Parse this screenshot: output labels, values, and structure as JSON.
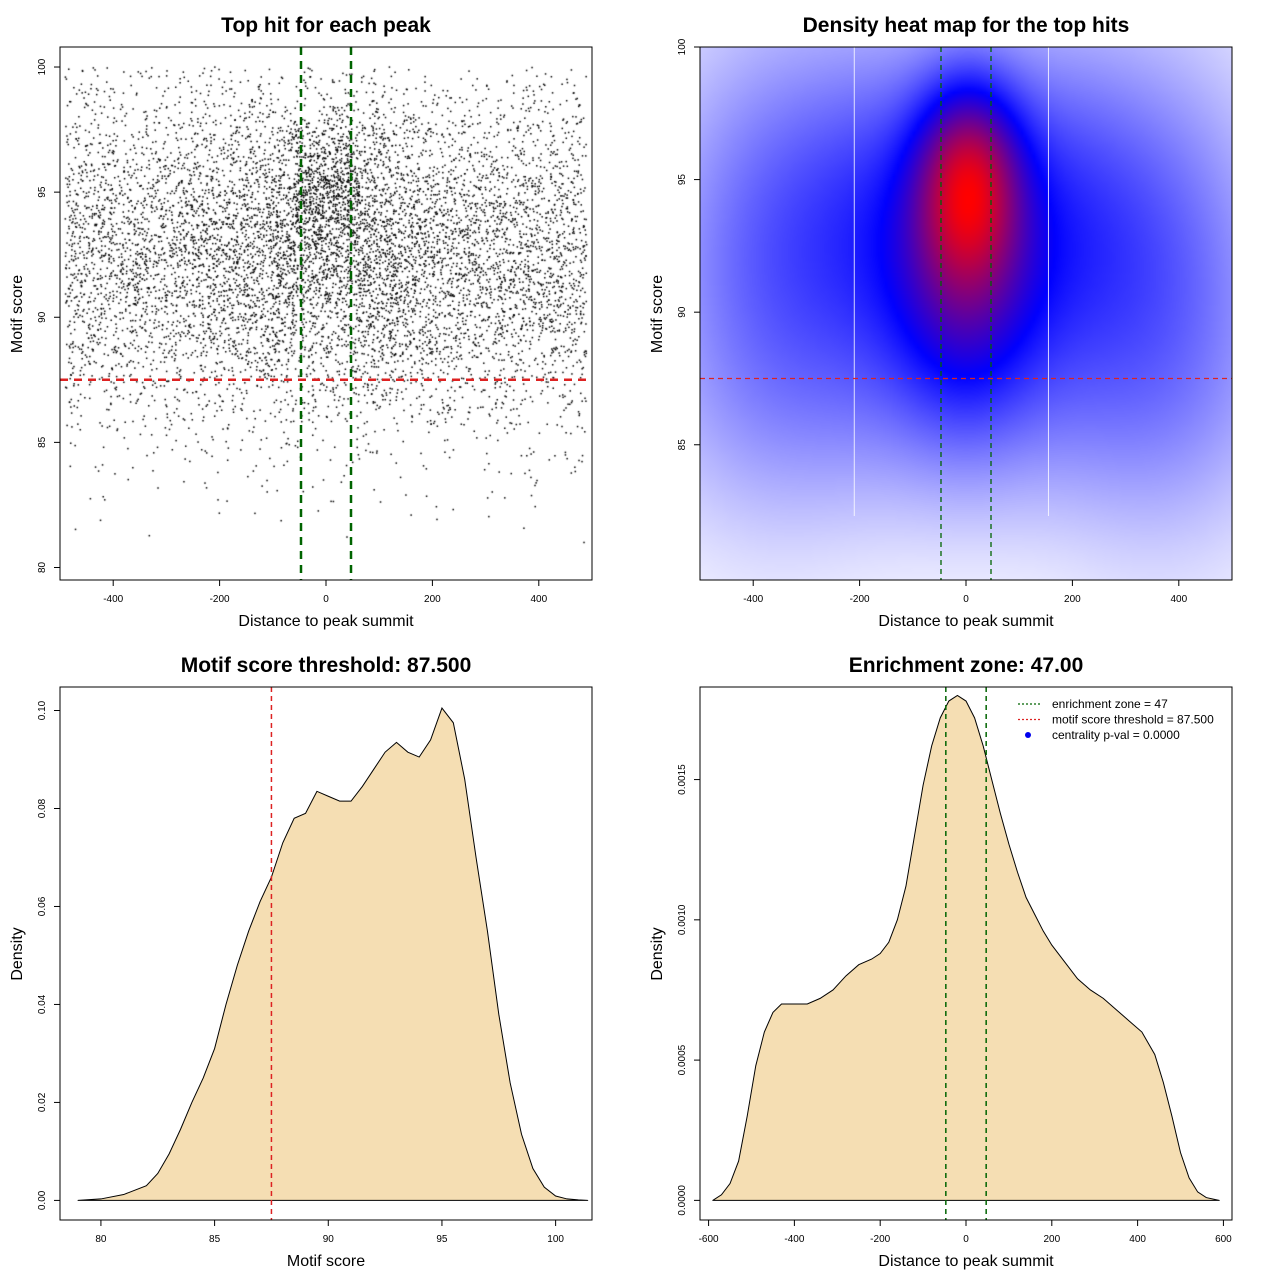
{
  "chart_data": [
    {
      "type": "scatter",
      "title": "Top hit for each peak",
      "xlabel": "Distance to peak summit",
      "ylabel": "Motif score",
      "xlim": [
        -500,
        500
      ],
      "ylim": [
        79.5,
        100.8
      ],
      "xticks": [
        "-400",
        "-200",
        "0",
        "200",
        "400"
      ],
      "yticks": [
        "80",
        "85",
        "90",
        "95",
        "100"
      ],
      "n_points_approx": 9000,
      "points_note": "dense cloud of top hits, x uniform in [-490, 490], scores mostly 82-100, denser near x=0 and scores 90-96",
      "sample_points": [
        [
          -482,
          86.6
        ],
        [
          -470,
          97.4
        ],
        [
          -450,
          93.2
        ],
        [
          -441,
          99.3
        ],
        [
          -420,
          84.1
        ],
        [
          -380,
          99.8
        ],
        [
          -351,
          91.7
        ],
        [
          -300,
          88.4
        ],
        [
          -260,
          95.9
        ],
        [
          -201,
          99.9
        ],
        [
          -150,
          93.1
        ],
        [
          -101,
          87.9
        ],
        [
          -60,
          96.4
        ],
        [
          -30,
          94.8
        ],
        [
          -5,
          92.3
        ],
        [
          10,
          95.2
        ],
        [
          25,
          90.7
        ],
        [
          48,
          97.1
        ],
        [
          90,
          89.3
        ],
        [
          150,
          93.6
        ],
        [
          210,
          86.2
        ],
        [
          290,
          95.1
        ],
        [
          340,
          99.4
        ],
        [
          401,
          91.8
        ],
        [
          450,
          84.6
        ],
        [
          480,
          97.9
        ],
        [
          485,
          81.0
        ]
      ],
      "vlines": [
        {
          "x": -47,
          "color": "#006400",
          "style": "dashed"
        },
        {
          "x": 47,
          "color": "#006400",
          "style": "dashed"
        }
      ],
      "hlines": [
        {
          "y": 87.5,
          "color": "#dd2222",
          "style": "dashed"
        }
      ]
    },
    {
      "type": "heatmap",
      "title": "Density heat map for the top hits",
      "xlabel": "Distance to peak summit",
      "ylabel": "Motif score",
      "xlim": [
        -500,
        500
      ],
      "ylim": [
        79.9,
        100
      ],
      "xticks": [
        "-400",
        "-200",
        "0",
        "200",
        "400"
      ],
      "yticks": [
        "85",
        "90",
        "95",
        "100"
      ],
      "color_scale": [
        "#ffffff",
        "#0000ff",
        "#ff0000"
      ],
      "density_peak": {
        "x": 5,
        "y": 95
      },
      "blobs": [
        {
          "x": 5,
          "y": 95,
          "sx": 65,
          "sy": 2.4,
          "w": 1.0
        },
        {
          "x": 0,
          "y": 91,
          "sx": 90,
          "sy": 3.5,
          "w": 0.55
        },
        {
          "x": -140,
          "y": 93,
          "sx": 140,
          "sy": 4.5,
          "w": 0.45
        },
        {
          "x": 150,
          "y": 93,
          "sx": 140,
          "sy": 4.5,
          "w": 0.45
        },
        {
          "x": -380,
          "y": 92,
          "sx": 140,
          "sy": 5.5,
          "w": 0.3
        },
        {
          "x": 380,
          "y": 91,
          "sx": 140,
          "sy": 5.5,
          "w": 0.3
        },
        {
          "x": 0,
          "y": 86,
          "sx": 350,
          "sy": 3,
          "w": 0.1
        }
      ],
      "white_vlines": [
        -210,
        155
      ],
      "vlines": [
        {
          "x": -47,
          "color": "#006400",
          "style": "dashed"
        },
        {
          "x": 47,
          "color": "#006400",
          "style": "dashed"
        }
      ],
      "hlines": [
        {
          "y": 87.5,
          "color": "#dd2222",
          "style": "dashed"
        }
      ]
    },
    {
      "type": "area",
      "title": "Motif score threshold: 87.500",
      "xlabel": "Motif score",
      "ylabel": "Density",
      "xlim": [
        78.2,
        101.6
      ],
      "ylim": [
        -0.004,
        0.1048
      ],
      "xticks": [
        "80",
        "85",
        "90",
        "95",
        "100"
      ],
      "yticks": [
        "0.00",
        "0.02",
        "0.04",
        "0.06",
        "0.08",
        "0.10"
      ],
      "fill": "#f5deb3",
      "x": [
        79,
        80,
        81,
        82,
        82.5,
        83,
        83.5,
        84,
        84.5,
        85,
        85.5,
        86,
        86.5,
        87,
        87.5,
        88,
        88.5,
        89,
        89.5,
        90,
        90.5,
        91,
        91.5,
        92,
        92.5,
        93,
        93.5,
        94,
        94.5,
        95,
        95.5,
        96,
        96.5,
        97,
        97.5,
        98,
        98.5,
        99,
        99.5,
        100,
        100.5,
        101,
        101.4
      ],
      "y": [
        0.0,
        0.0003,
        0.0012,
        0.003,
        0.0055,
        0.0095,
        0.0145,
        0.02,
        0.025,
        0.031,
        0.04,
        0.048,
        0.055,
        0.061,
        0.066,
        0.073,
        0.078,
        0.079,
        0.0835,
        0.0825,
        0.0815,
        0.0815,
        0.0845,
        0.088,
        0.0915,
        0.0935,
        0.0915,
        0.0905,
        0.094,
        0.1005,
        0.0975,
        0.086,
        0.07,
        0.055,
        0.038,
        0.024,
        0.0135,
        0.0065,
        0.0027,
        0.0009,
        0.0003,
        0.0001,
        0.0
      ],
      "vlines": [
        {
          "x": 87.5,
          "color": "#dd2222",
          "style": "dashed"
        }
      ]
    },
    {
      "type": "area",
      "title": "Enrichment zone: 47.00",
      "xlabel": "Distance to peak summit",
      "ylabel": "Density",
      "xlim": [
        -620,
        620
      ],
      "ylim": [
        -7e-05,
        0.00183
      ],
      "xticks": [
        "-600",
        "-400",
        "-200",
        "0",
        "200",
        "400",
        "600"
      ],
      "yticks": [
        "0.0000",
        "0.0005",
        "0.0010",
        "0.0015"
      ],
      "fill": "#f5deb3",
      "x": [
        -590,
        -570,
        -550,
        -530,
        -510,
        -490,
        -470,
        -450,
        -430,
        -400,
        -370,
        -340,
        -310,
        -280,
        -250,
        -220,
        -200,
        -180,
        -160,
        -140,
        -120,
        -100,
        -80,
        -60,
        -40,
        -20,
        0,
        20,
        40,
        60,
        80,
        100,
        120,
        140,
        160,
        180,
        200,
        230,
        260,
        290,
        320,
        350,
        380,
        410,
        440,
        460,
        480,
        500,
        520,
        540,
        560,
        590
      ],
      "y": [
        0.0,
        2e-05,
        6e-05,
        0.00014,
        0.0003,
        0.00048,
        0.0006,
        0.00067,
        0.0007,
        0.0007,
        0.0007,
        0.00072,
        0.00075,
        0.0008,
        0.00084,
        0.00086,
        0.00088,
        0.00092,
        0.001,
        0.00112,
        0.0013,
        0.00148,
        0.00162,
        0.00172,
        0.00178,
        0.0018,
        0.00178,
        0.00172,
        0.00162,
        0.0015,
        0.00138,
        0.00127,
        0.00117,
        0.00108,
        0.00102,
        0.00096,
        0.00091,
        0.00085,
        0.00079,
        0.00075,
        0.00072,
        0.00068,
        0.00064,
        0.0006,
        0.00052,
        0.00042,
        0.0003,
        0.00017,
        8e-05,
        3e-05,
        1e-05,
        0.0
      ],
      "vlines": [
        {
          "x": -47,
          "color": "#006400",
          "style": "dashed"
        },
        {
          "x": 47,
          "color": "#006400",
          "style": "dashed"
        }
      ],
      "legend": {
        "placement": "top-right",
        "entries": [
          {
            "label": "enrichment zone = 47",
            "color": "#006400",
            "kind": "dotted-line"
          },
          {
            "label": "motif score threshold = 87.500",
            "color": "#dd2222",
            "kind": "dotted-line"
          },
          {
            "label": "centrality p-val = 0.0000",
            "color": "#0000ee",
            "kind": "dot"
          }
        ]
      }
    }
  ]
}
